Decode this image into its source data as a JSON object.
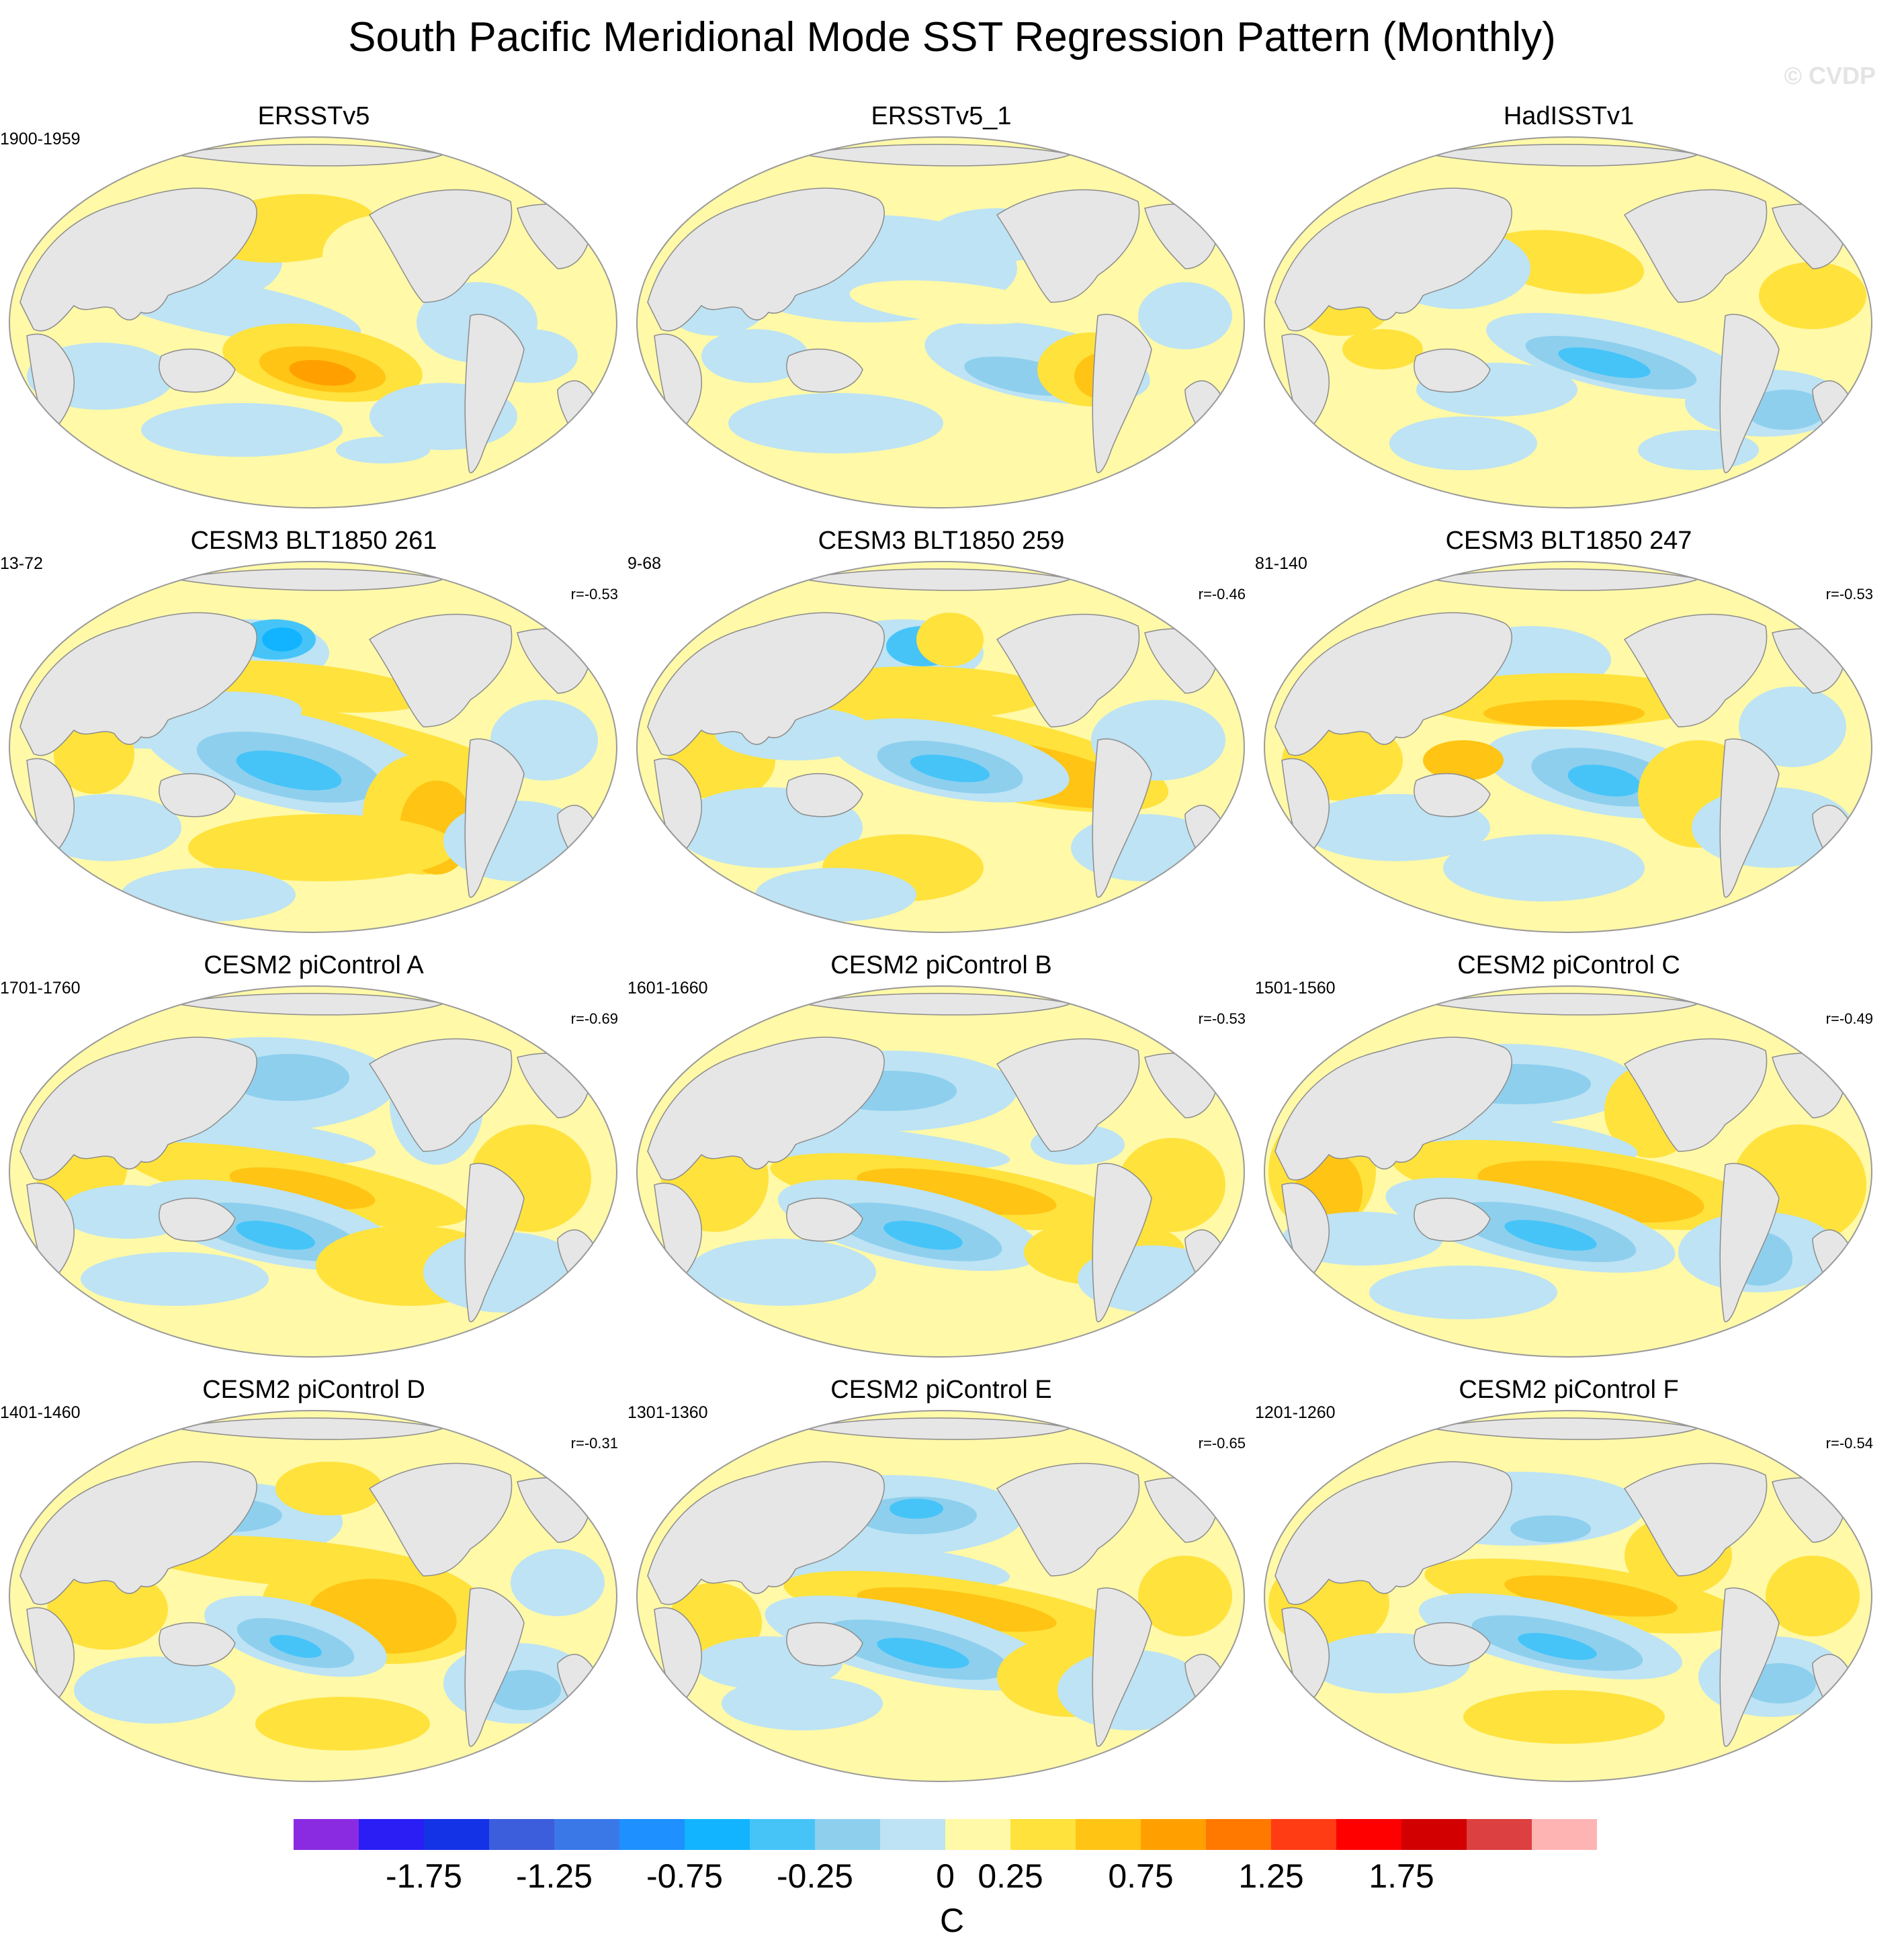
{
  "title": "South Pacific Meridional Mode SST Regression Pattern (Monthly)",
  "watermark": "© CVDP",
  "chart_data": {
    "type": "heatmap",
    "description": "Global maps (Robinson projection, Pacific-centered) of monthly SST regressed on the South Pacific Meridional Mode index",
    "panels": [
      {
        "title": "ERSSTv5",
        "years": "1900-1959",
        "r": "",
        "pattern": "obs_a"
      },
      {
        "title": "ERSSTv5_1",
        "years": "",
        "r": "",
        "pattern": "obs_b"
      },
      {
        "title": "HadISSTv1",
        "years": "",
        "r": "",
        "pattern": "obs_c"
      },
      {
        "title": "CESM3 BLT1850 261",
        "years": "13-72",
        "r": "r=-0.53",
        "pattern": "cesm3_a"
      },
      {
        "title": "CESM3 BLT1850 259",
        "years": "9-68",
        "r": "r=-0.46",
        "pattern": "cesm3_b"
      },
      {
        "title": "CESM3 BLT1850 247",
        "years": "81-140",
        "r": "r=-0.53",
        "pattern": "cesm3_c"
      },
      {
        "title": "CESM2 piControl A",
        "years": "1701-1760",
        "r": "r=-0.69",
        "pattern": "cesm2_a"
      },
      {
        "title": "CESM2 piControl B",
        "years": "1601-1660",
        "r": "r=-0.53",
        "pattern": "cesm2_b"
      },
      {
        "title": "CESM2 piControl C",
        "years": "1501-1560",
        "r": "r=-0.49",
        "pattern": "cesm2_c"
      },
      {
        "title": "CESM2 piControl D",
        "years": "1401-1460",
        "r": "r=-0.31",
        "pattern": "cesm2_d"
      },
      {
        "title": "CESM2 piControl E",
        "years": "1301-1360",
        "r": "r=-0.65",
        "pattern": "cesm2_e"
      },
      {
        "title": "CESM2 piControl F",
        "years": "1201-1260",
        "r": "r=-0.54",
        "pattern": "cesm2_f"
      }
    ],
    "colorbar": {
      "colors": [
        "#8a2be2",
        "#2a1ef5",
        "#1432e6",
        "#3c5ddc",
        "#3a78e8",
        "#1e90ff",
        "#12b4ff",
        "#46c4f8",
        "#8ecfee",
        "#bde3f4",
        "#fff9a8",
        "#ffe23c",
        "#ffc414",
        "#ffa000",
        "#ff7800",
        "#ff3c14",
        "#ff0000",
        "#d20000",
        "#dc4040",
        "#ffb4b4"
      ],
      "labels": [
        "-1.75",
        "-1.25",
        "-0.75",
        "-0.25",
        "0",
        "0.25",
        "0.75",
        "1.25",
        "1.75"
      ],
      "label_boundaries": [
        2,
        4,
        6,
        8,
        10,
        11,
        13,
        15,
        17
      ],
      "units": "C"
    }
  }
}
